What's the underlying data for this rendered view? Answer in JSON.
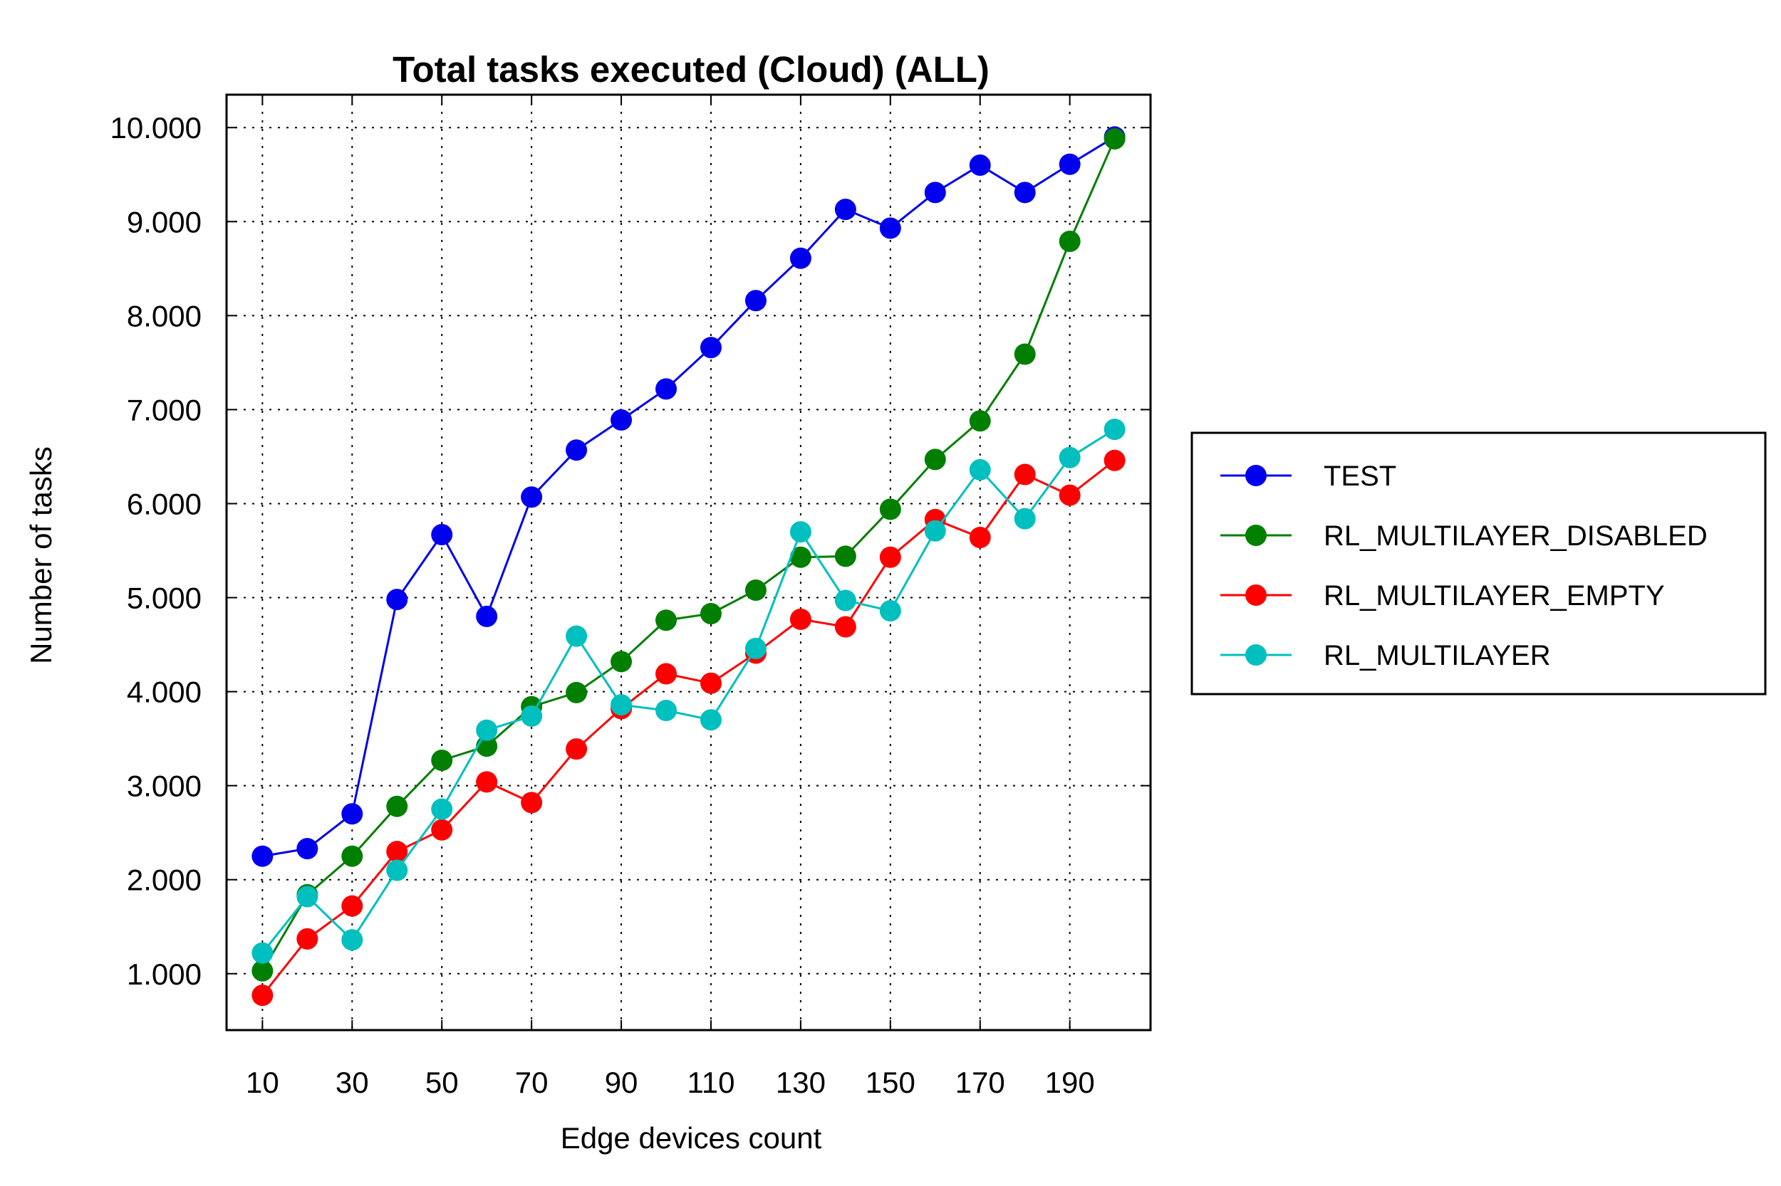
{
  "chart_data": {
    "type": "line",
    "title": "Total tasks executed (Cloud) (ALL)",
    "xlabel": "Edge devices count",
    "ylabel": "Number of tasks",
    "xlim": [
      2,
      208
    ],
    "ylim": [
      400,
      10350
    ],
    "x_ticks": [
      10,
      30,
      50,
      70,
      90,
      110,
      130,
      150,
      170,
      190
    ],
    "x_tick_labels": [
      "10",
      "30",
      "50",
      "70",
      "90",
      "110",
      "130",
      "150",
      "170",
      "190"
    ],
    "y_ticks": [
      1000,
      2000,
      3000,
      4000,
      5000,
      6000,
      7000,
      8000,
      9000,
      10000
    ],
    "y_tick_labels": [
      "1.000",
      "2.000",
      "3.000",
      "4.000",
      "5.000",
      "6.000",
      "7.000",
      "8.000",
      "9.000",
      "10.000"
    ],
    "grid": true,
    "legend_position": "outside-right",
    "x": [
      10,
      20,
      30,
      40,
      50,
      60,
      70,
      80,
      90,
      100,
      110,
      120,
      130,
      140,
      150,
      160,
      170,
      180,
      190,
      200
    ],
    "series": [
      {
        "name": "TEST",
        "color": "#0000ee",
        "values": [
          2250,
          2330,
          2700,
          4980,
          5670,
          4800,
          6070,
          6570,
          6890,
          7220,
          7660,
          8160,
          8610,
          9130,
          8930,
          9310,
          9600,
          9310,
          9610,
          9900
        ]
      },
      {
        "name": "RL_MULTILAYER_DISABLED",
        "color": "#007f00",
        "values": [
          1030,
          1840,
          2250,
          2780,
          3270,
          3420,
          3840,
          3990,
          4320,
          4760,
          4830,
          5080,
          5430,
          5440,
          5940,
          6470,
          6880,
          7590,
          8790,
          9880
        ]
      },
      {
        "name": "RL_MULTILAYER_EMPTY",
        "color": "#ff0000",
        "values": [
          770,
          1370,
          1720,
          2300,
          2530,
          3040,
          2820,
          3390,
          3820,
          4190,
          4090,
          4410,
          4770,
          4690,
          5430,
          5830,
          5640,
          6310,
          6090,
          6460
        ]
      },
      {
        "name": "RL_MULTILAYER",
        "color": "#00bfbf",
        "values": [
          1220,
          1820,
          1360,
          2100,
          2750,
          3590,
          3740,
          4590,
          3860,
          3800,
          3700,
          4460,
          5700,
          4970,
          4860,
          5710,
          6360,
          5840,
          6490,
          6790
        ]
      }
    ]
  }
}
